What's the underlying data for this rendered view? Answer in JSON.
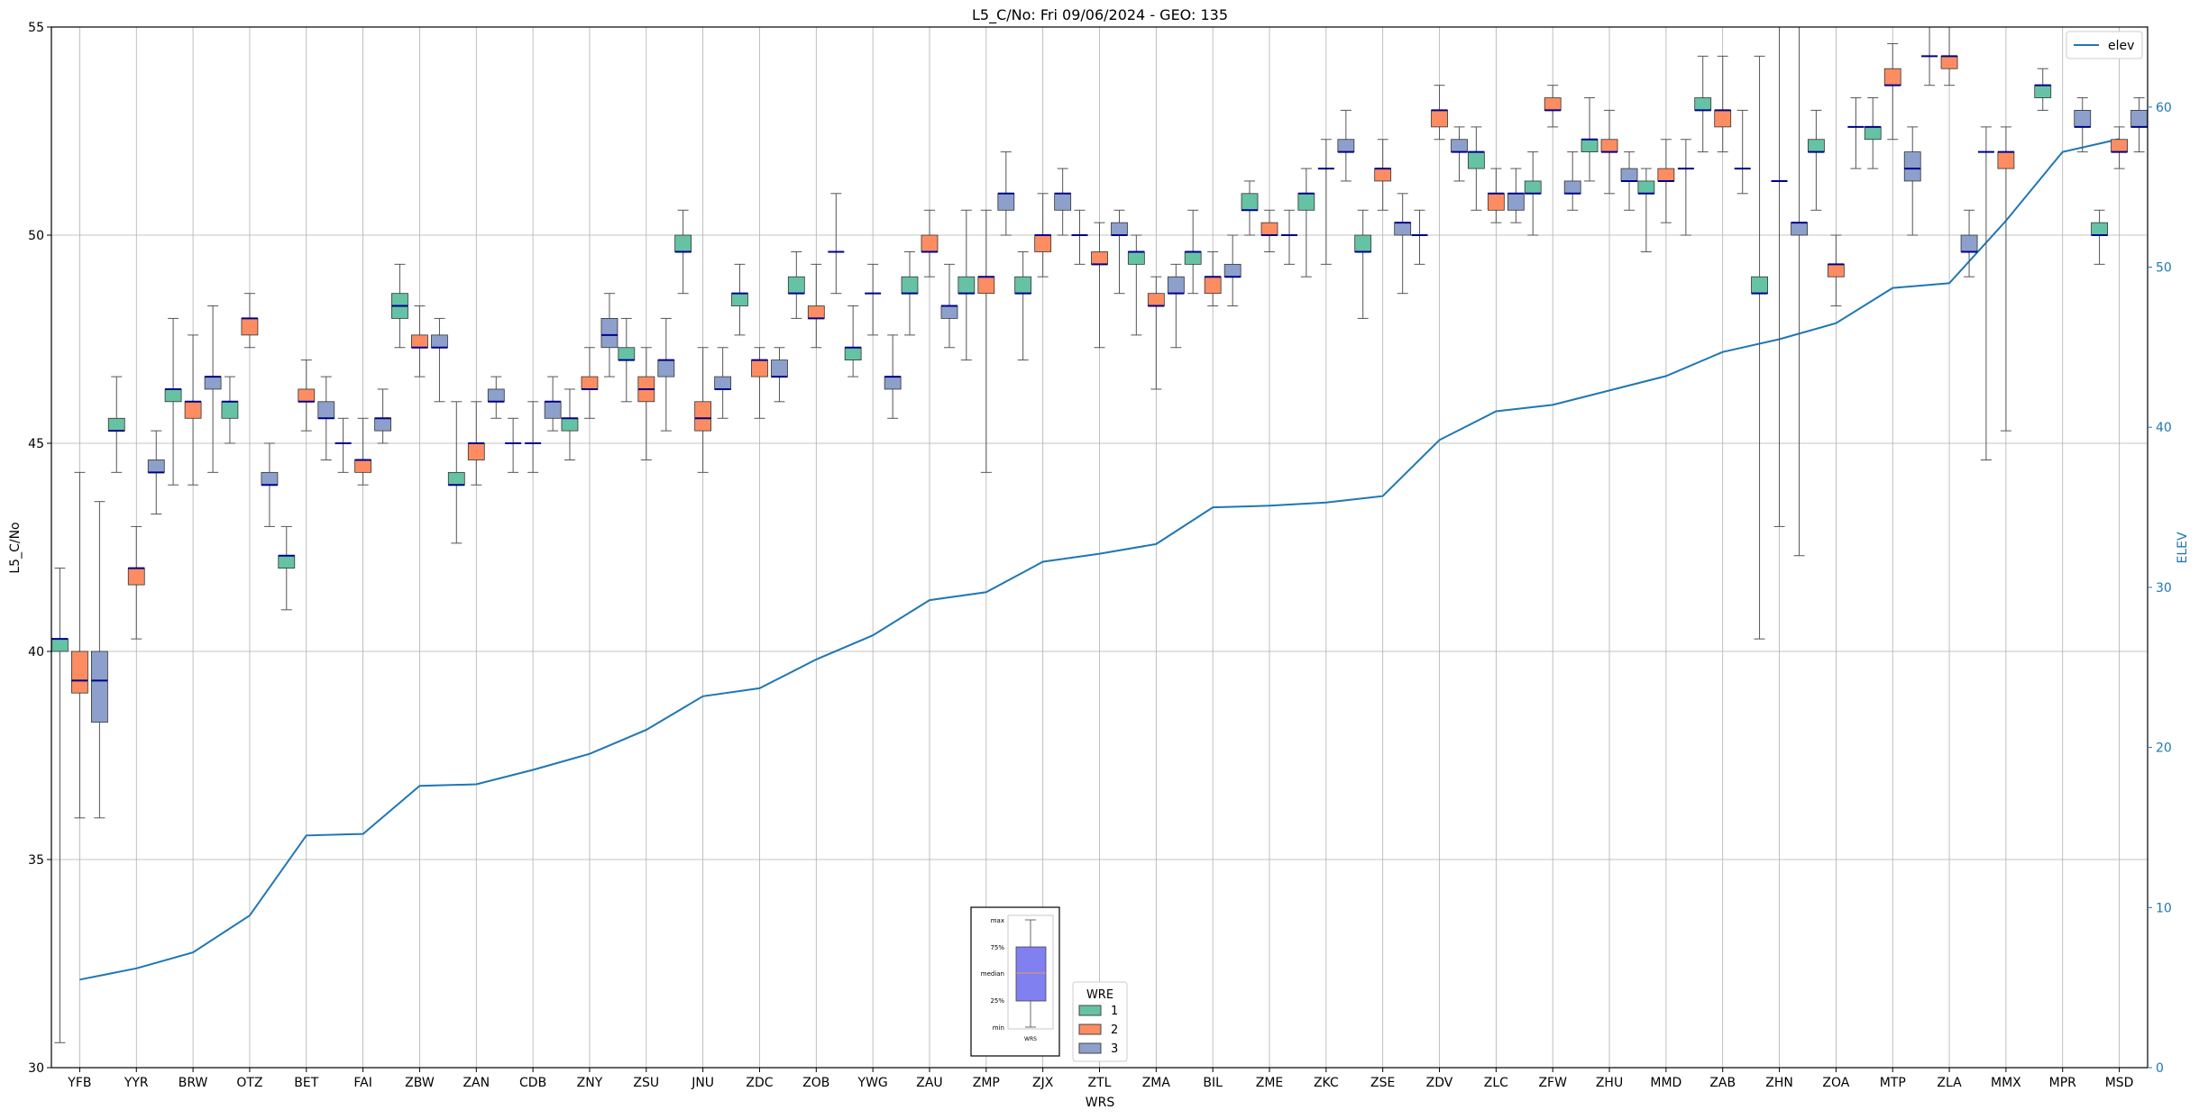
{
  "chart_data": {
    "type": "box",
    "title": "L5_C/No: Fri 09/06/2024 - GEO: 135",
    "xlabel": "WRS",
    "ylabel": "L5_C/No",
    "y2label": "ELEV",
    "ylim": [
      30,
      55
    ],
    "y2lim": [
      0,
      65
    ],
    "yticks": [
      30,
      35,
      40,
      45,
      50,
      55
    ],
    "y2ticks": [
      0,
      10,
      20,
      30,
      40,
      50,
      60
    ],
    "grid": true,
    "categories": [
      "YFB",
      "YYR",
      "BRW",
      "OTZ",
      "BET",
      "FAI",
      "ZBW",
      "ZAN",
      "CDB",
      "ZNY",
      "ZSU",
      "JNU",
      "ZDC",
      "ZOB",
      "YWG",
      "ZAU",
      "ZMP",
      "ZJX",
      "ZTL",
      "ZMA",
      "BIL",
      "ZME",
      "ZKC",
      "ZSE",
      "ZDV",
      "ZLC",
      "ZFW",
      "ZHU",
      "MMD",
      "ZAB",
      "ZHN",
      "ZOA",
      "MTP",
      "ZLA",
      "MMX",
      "MPR",
      "MSD"
    ],
    "box_series_colors": {
      "1": "#66c2a5",
      "2": "#fc8d62",
      "3": "#8da0cb"
    },
    "line_series": {
      "name": "elev",
      "color": "#1f77b4",
      "axis": "right",
      "values": [
        5.5,
        6.2,
        7.2,
        9.5,
        14.5,
        14.6,
        17.6,
        17.7,
        18.6,
        19.6,
        21.1,
        23.2,
        23.7,
        25.5,
        27.0,
        29.2,
        29.7,
        31.6,
        32.1,
        32.7,
        35.0,
        35.1,
        35.3,
        35.7,
        39.2,
        41.0,
        41.4,
        42.3,
        43.2,
        44.7,
        45.5,
        46.5,
        48.7,
        49.0,
        52.9,
        57.2,
        58.0
      ]
    },
    "boxes": [
      {
        "cat": "YFB",
        "wre": "1",
        "min": 30.6,
        "q1": 40.0,
        "median": 40.3,
        "q3": 40.3,
        "max": 42.0
      },
      {
        "cat": "YFB",
        "wre": "2",
        "min": 36.0,
        "q1": 39.0,
        "median": 39.3,
        "q3": 40.0,
        "max": 44.3
      },
      {
        "cat": "YFB",
        "wre": "3",
        "min": 36.0,
        "q1": 38.3,
        "median": 39.3,
        "q3": 40.0,
        "max": 43.6
      },
      {
        "cat": "YYR",
        "wre": "1",
        "min": 44.3,
        "q1": 45.3,
        "median": 45.3,
        "q3": 45.6,
        "max": 46.6
      },
      {
        "cat": "YYR",
        "wre": "2",
        "min": 40.3,
        "q1": 41.6,
        "median": 42.0,
        "q3": 42.0,
        "max": 43.0
      },
      {
        "cat": "YYR",
        "wre": "3",
        "min": 43.3,
        "q1": 44.3,
        "median": 44.3,
        "q3": 44.6,
        "max": 45.3
      },
      {
        "cat": "BRW",
        "wre": "1",
        "min": 44.0,
        "q1": 46.0,
        "median": 46.3,
        "q3": 46.3,
        "max": 48.0
      },
      {
        "cat": "BRW",
        "wre": "2",
        "min": 44.0,
        "q1": 45.6,
        "median": 46.0,
        "q3": 46.0,
        "max": 47.6
      },
      {
        "cat": "BRW",
        "wre": "3",
        "min": 44.3,
        "q1": 46.3,
        "median": 46.6,
        "q3": 46.6,
        "max": 48.3
      },
      {
        "cat": "OTZ",
        "wre": "1",
        "min": 45.0,
        "q1": 45.6,
        "median": 46.0,
        "q3": 46.0,
        "max": 46.6
      },
      {
        "cat": "OTZ",
        "wre": "2",
        "min": 47.3,
        "q1": 47.6,
        "median": 48.0,
        "q3": 48.0,
        "max": 48.6
      },
      {
        "cat": "OTZ",
        "wre": "3",
        "min": 43.0,
        "q1": 44.0,
        "median": 44.0,
        "q3": 44.3,
        "max": 45.0
      },
      {
        "cat": "BET",
        "wre": "1",
        "min": 41.0,
        "q1": 42.0,
        "median": 42.3,
        "q3": 42.3,
        "max": 43.0
      },
      {
        "cat": "BET",
        "wre": "2",
        "min": 45.3,
        "q1": 46.0,
        "median": 46.0,
        "q3": 46.3,
        "max": 47.0
      },
      {
        "cat": "BET",
        "wre": "3",
        "min": 44.6,
        "q1": 45.6,
        "median": 45.6,
        "q3": 46.0,
        "max": 46.6
      },
      {
        "cat": "FAI",
        "wre": "1",
        "min": 44.3,
        "q1": 45.0,
        "median": 45.0,
        "q3": 45.0,
        "max": 45.6
      },
      {
        "cat": "FAI",
        "wre": "2",
        "min": 44.0,
        "q1": 44.3,
        "median": 44.6,
        "q3": 44.6,
        "max": 45.6
      },
      {
        "cat": "FAI",
        "wre": "3",
        "min": 45.0,
        "q1": 45.3,
        "median": 45.6,
        "q3": 45.6,
        "max": 46.3
      },
      {
        "cat": "ZBW",
        "wre": "1",
        "min": 47.3,
        "q1": 48.0,
        "median": 48.3,
        "q3": 48.6,
        "max": 49.3
      },
      {
        "cat": "ZBW",
        "wre": "2",
        "min": 46.6,
        "q1": 47.3,
        "median": 47.3,
        "q3": 47.6,
        "max": 48.3
      },
      {
        "cat": "ZBW",
        "wre": "3",
        "min": 46.0,
        "q1": 47.3,
        "median": 47.3,
        "q3": 47.6,
        "max": 48.0
      },
      {
        "cat": "ZAN",
        "wre": "1",
        "min": 42.6,
        "q1": 44.0,
        "median": 44.0,
        "q3": 44.3,
        "max": 46.0
      },
      {
        "cat": "ZAN",
        "wre": "2",
        "min": 44.0,
        "q1": 44.6,
        "median": 45.0,
        "q3": 45.0,
        "max": 46.0
      },
      {
        "cat": "ZAN",
        "wre": "3",
        "min": 45.6,
        "q1": 46.0,
        "median": 46.0,
        "q3": 46.3,
        "max": 46.6
      },
      {
        "cat": "CDB",
        "wre": "1",
        "min": 44.3,
        "q1": 45.0,
        "median": 45.0,
        "q3": 45.0,
        "max": 45.6
      },
      {
        "cat": "CDB",
        "wre": "2",
        "min": 44.3,
        "q1": 45.0,
        "median": 45.0,
        "q3": 45.0,
        "max": 46.0
      },
      {
        "cat": "CDB",
        "wre": "3",
        "min": 45.3,
        "q1": 45.6,
        "median": 46.0,
        "q3": 46.0,
        "max": 46.6
      },
      {
        "cat": "ZNY",
        "wre": "1",
        "min": 44.6,
        "q1": 45.3,
        "median": 45.6,
        "q3": 45.6,
        "max": 46.3
      },
      {
        "cat": "ZNY",
        "wre": "2",
        "min": 45.6,
        "q1": 46.3,
        "median": 46.3,
        "q3": 46.6,
        "max": 47.3
      },
      {
        "cat": "ZNY",
        "wre": "3",
        "min": 46.6,
        "q1": 47.3,
        "median": 47.6,
        "q3": 48.0,
        "max": 48.6
      },
      {
        "cat": "ZSU",
        "wre": "1",
        "min": 46.0,
        "q1": 47.0,
        "median": 47.0,
        "q3": 47.3,
        "max": 48.0
      },
      {
        "cat": "ZSU",
        "wre": "2",
        "min": 44.6,
        "q1": 46.0,
        "median": 46.3,
        "q3": 46.6,
        "max": 47.3
      },
      {
        "cat": "ZSU",
        "wre": "3",
        "min": 45.3,
        "q1": 46.6,
        "median": 47.0,
        "q3": 47.0,
        "max": 48.0
      },
      {
        "cat": "JNU",
        "wre": "1",
        "min": 48.6,
        "q1": 49.6,
        "median": 49.6,
        "q3": 50.0,
        "max": 50.6
      },
      {
        "cat": "JNU",
        "wre": "2",
        "min": 44.3,
        "q1": 45.3,
        "median": 45.6,
        "q3": 46.0,
        "max": 47.3
      },
      {
        "cat": "JNU",
        "wre": "3",
        "min": 45.6,
        "q1": 46.3,
        "median": 46.3,
        "q3": 46.6,
        "max": 47.3
      },
      {
        "cat": "ZDC",
        "wre": "1",
        "min": 47.6,
        "q1": 48.3,
        "median": 48.6,
        "q3": 48.6,
        "max": 49.3
      },
      {
        "cat": "ZDC",
        "wre": "2",
        "min": 45.6,
        "q1": 46.6,
        "median": 47.0,
        "q3": 47.0,
        "max": 47.3
      },
      {
        "cat": "ZDC",
        "wre": "3",
        "min": 46.0,
        "q1": 46.6,
        "median": 46.6,
        "q3": 47.0,
        "max": 47.3
      },
      {
        "cat": "ZOB",
        "wre": "1",
        "min": 48.0,
        "q1": 48.6,
        "median": 48.6,
        "q3": 49.0,
        "max": 49.6
      },
      {
        "cat": "ZOB",
        "wre": "2",
        "min": 47.3,
        "q1": 48.0,
        "median": 48.0,
        "q3": 48.3,
        "max": 49.3
      },
      {
        "cat": "ZOB",
        "wre": "3",
        "min": 48.6,
        "q1": 49.6,
        "median": 49.6,
        "q3": 49.6,
        "max": 51.0
      },
      {
        "cat": "YWG",
        "wre": "1",
        "min": 46.6,
        "q1": 47.0,
        "median": 47.3,
        "q3": 47.3,
        "max": 48.3
      },
      {
        "cat": "YWG",
        "wre": "2",
        "min": 47.6,
        "q1": 48.6,
        "median": 48.6,
        "q3": 48.6,
        "max": 49.3
      },
      {
        "cat": "YWG",
        "wre": "3",
        "min": 45.6,
        "q1": 46.3,
        "median": 46.6,
        "q3": 46.6,
        "max": 47.6
      },
      {
        "cat": "ZAU",
        "wre": "1",
        "min": 47.6,
        "q1": 48.6,
        "median": 48.6,
        "q3": 49.0,
        "max": 49.6
      },
      {
        "cat": "ZAU",
        "wre": "2",
        "min": 49.0,
        "q1": 49.6,
        "median": 49.6,
        "q3": 50.0,
        "max": 50.6
      },
      {
        "cat": "ZAU",
        "wre": "3",
        "min": 47.3,
        "q1": 48.0,
        "median": 48.3,
        "q3": 48.3,
        "max": 49.3
      },
      {
        "cat": "ZMP",
        "wre": "1",
        "min": 47.0,
        "q1": 48.6,
        "median": 48.6,
        "q3": 49.0,
        "max": 50.6
      },
      {
        "cat": "ZMP",
        "wre": "2",
        "min": 44.3,
        "q1": 48.6,
        "median": 49.0,
        "q3": 49.0,
        "max": 50.6
      },
      {
        "cat": "ZMP",
        "wre": "3",
        "min": 50.0,
        "q1": 50.6,
        "median": 51.0,
        "q3": 51.0,
        "max": 52.0
      },
      {
        "cat": "ZJX",
        "wre": "1",
        "min": 47.0,
        "q1": 48.6,
        "median": 48.6,
        "q3": 49.0,
        "max": 49.6
      },
      {
        "cat": "ZJX",
        "wre": "2",
        "min": 49.0,
        "q1": 49.6,
        "median": 50.0,
        "q3": 50.0,
        "max": 51.0
      },
      {
        "cat": "ZJX",
        "wre": "3",
        "min": 50.0,
        "q1": 50.6,
        "median": 51.0,
        "q3": 51.0,
        "max": 51.6
      },
      {
        "cat": "ZTL",
        "wre": "1",
        "min": 49.3,
        "q1": 50.0,
        "median": 50.0,
        "q3": 50.0,
        "max": 50.6
      },
      {
        "cat": "ZTL",
        "wre": "2",
        "min": 47.3,
        "q1": 49.3,
        "median": 49.3,
        "q3": 49.6,
        "max": 50.3
      },
      {
        "cat": "ZTL",
        "wre": "3",
        "min": 48.6,
        "q1": 50.0,
        "median": 50.0,
        "q3": 50.3,
        "max": 50.6
      },
      {
        "cat": "ZMA",
        "wre": "1",
        "min": 47.6,
        "q1": 49.3,
        "median": 49.6,
        "q3": 49.6,
        "max": 50.0
      },
      {
        "cat": "ZMA",
        "wre": "2",
        "min": 46.3,
        "q1": 48.3,
        "median": 48.3,
        "q3": 48.6,
        "max": 49.0
      },
      {
        "cat": "ZMA",
        "wre": "3",
        "min": 47.3,
        "q1": 48.6,
        "median": 48.6,
        "q3": 49.0,
        "max": 49.3
      },
      {
        "cat": "BIL",
        "wre": "1",
        "min": 48.6,
        "q1": 49.3,
        "median": 49.6,
        "q3": 49.6,
        "max": 50.6
      },
      {
        "cat": "BIL",
        "wre": "2",
        "min": 48.3,
        "q1": 48.6,
        "median": 49.0,
        "q3": 49.0,
        "max": 49.6
      },
      {
        "cat": "BIL",
        "wre": "3",
        "min": 48.3,
        "q1": 49.0,
        "median": 49.0,
        "q3": 49.3,
        "max": 50.0
      },
      {
        "cat": "ZME",
        "wre": "1",
        "min": 50.0,
        "q1": 50.6,
        "median": 50.6,
        "q3": 51.0,
        "max": 51.3
      },
      {
        "cat": "ZME",
        "wre": "2",
        "min": 49.6,
        "q1": 50.0,
        "median": 50.0,
        "q3": 50.3,
        "max": 50.6
      },
      {
        "cat": "ZME",
        "wre": "3",
        "min": 49.3,
        "q1": 50.0,
        "median": 50.0,
        "q3": 50.0,
        "max": 50.6
      },
      {
        "cat": "ZKC",
        "wre": "1",
        "min": 49.0,
        "q1": 50.6,
        "median": 51.0,
        "q3": 51.0,
        "max": 51.6
      },
      {
        "cat": "ZKC",
        "wre": "2",
        "min": 49.3,
        "q1": 51.6,
        "median": 51.6,
        "q3": 51.6,
        "max": 52.3
      },
      {
        "cat": "ZKC",
        "wre": "3",
        "min": 51.3,
        "q1": 52.0,
        "median": 52.0,
        "q3": 52.3,
        "max": 53.0
      },
      {
        "cat": "ZSE",
        "wre": "1",
        "min": 48.0,
        "q1": 49.6,
        "median": 49.6,
        "q3": 50.0,
        "max": 50.6
      },
      {
        "cat": "ZSE",
        "wre": "2",
        "min": 50.6,
        "q1": 51.3,
        "median": 51.6,
        "q3": 51.6,
        "max": 52.3
      },
      {
        "cat": "ZSE",
        "wre": "3",
        "min": 48.6,
        "q1": 50.0,
        "median": 50.3,
        "q3": 50.3,
        "max": 51.0
      },
      {
        "cat": "ZDV",
        "wre": "1",
        "min": 49.3,
        "q1": 50.0,
        "median": 50.0,
        "q3": 50.0,
        "max": 50.6
      },
      {
        "cat": "ZDV",
        "wre": "2",
        "min": 52.3,
        "q1": 52.6,
        "median": 53.0,
        "q3": 53.0,
        "max": 53.6
      },
      {
        "cat": "ZDV",
        "wre": "3",
        "min": 51.3,
        "q1": 52.0,
        "median": 52.0,
        "q3": 52.3,
        "max": 52.6
      },
      {
        "cat": "ZLC",
        "wre": "1",
        "min": 50.6,
        "q1": 51.6,
        "median": 52.0,
        "q3": 52.0,
        "max": 52.6
      },
      {
        "cat": "ZLC",
        "wre": "2",
        "min": 50.3,
        "q1": 50.6,
        "median": 51.0,
        "q3": 51.0,
        "max": 51.6
      },
      {
        "cat": "ZLC",
        "wre": "3",
        "min": 50.3,
        "q1": 50.6,
        "median": 51.0,
        "q3": 51.0,
        "max": 51.6
      },
      {
        "cat": "ZFW",
        "wre": "1",
        "min": 50.0,
        "q1": 51.0,
        "median": 51.0,
        "q3": 51.3,
        "max": 52.0
      },
      {
        "cat": "ZFW",
        "wre": "2",
        "min": 52.6,
        "q1": 53.0,
        "median": 53.0,
        "q3": 53.3,
        "max": 53.6
      },
      {
        "cat": "ZFW",
        "wre": "3",
        "min": 50.6,
        "q1": 51.0,
        "median": 51.0,
        "q3": 51.3,
        "max": 52.0
      },
      {
        "cat": "ZHU",
        "wre": "1",
        "min": 51.3,
        "q1": 52.0,
        "median": 52.3,
        "q3": 52.3,
        "max": 53.3
      },
      {
        "cat": "ZHU",
        "wre": "2",
        "min": 51.0,
        "q1": 52.0,
        "median": 52.0,
        "q3": 52.3,
        "max": 53.0
      },
      {
        "cat": "ZHU",
        "wre": "3",
        "min": 50.6,
        "q1": 51.3,
        "median": 51.3,
        "q3": 51.6,
        "max": 52.0
      },
      {
        "cat": "MMD",
        "wre": "1",
        "min": 49.6,
        "q1": 51.0,
        "median": 51.0,
        "q3": 51.3,
        "max": 51.6
      },
      {
        "cat": "MMD",
        "wre": "2",
        "min": 50.3,
        "q1": 51.3,
        "median": 51.3,
        "q3": 51.6,
        "max": 52.3
      },
      {
        "cat": "MMD",
        "wre": "3",
        "min": 50.0,
        "q1": 51.6,
        "median": 51.6,
        "q3": 51.6,
        "max": 52.3
      },
      {
        "cat": "ZAB",
        "wre": "1",
        "min": 52.0,
        "q1": 53.0,
        "median": 53.0,
        "q3": 53.3,
        "max": 54.3
      },
      {
        "cat": "ZAB",
        "wre": "2",
        "min": 52.0,
        "q1": 52.6,
        "median": 53.0,
        "q3": 53.0,
        "max": 54.3
      },
      {
        "cat": "ZAB",
        "wre": "3",
        "min": 51.0,
        "q1": 51.6,
        "median": 51.6,
        "q3": 51.6,
        "max": 53.0
      },
      {
        "cat": "ZHN",
        "wre": "1",
        "min": 40.3,
        "q1": 48.6,
        "median": 48.6,
        "q3": 49.0,
        "max": 54.3
      },
      {
        "cat": "ZHN",
        "wre": "2",
        "min": 43.0,
        "q1": 51.3,
        "median": 51.3,
        "q3": 51.3,
        "max": 55.0
      },
      {
        "cat": "ZHN",
        "wre": "3",
        "min": 42.3,
        "q1": 50.0,
        "median": 50.3,
        "q3": 50.3,
        "max": 55.0
      },
      {
        "cat": "ZOA",
        "wre": "1",
        "min": 50.6,
        "q1": 52.0,
        "median": 52.0,
        "q3": 52.3,
        "max": 53.0
      },
      {
        "cat": "ZOA",
        "wre": "2",
        "min": 48.3,
        "q1": 49.0,
        "median": 49.3,
        "q3": 49.3,
        "max": 50.0
      },
      {
        "cat": "ZOA",
        "wre": "3",
        "min": 51.6,
        "q1": 52.6,
        "median": 52.6,
        "q3": 52.6,
        "max": 53.3
      },
      {
        "cat": "MTP",
        "wre": "1",
        "min": 51.6,
        "q1": 52.3,
        "median": 52.6,
        "q3": 52.6,
        "max": 53.3
      },
      {
        "cat": "MTP",
        "wre": "2",
        "min": 52.3,
        "q1": 53.6,
        "median": 53.6,
        "q3": 54.0,
        "max": 54.6
      },
      {
        "cat": "MTP",
        "wre": "3",
        "min": 50.0,
        "q1": 51.3,
        "median": 51.6,
        "q3": 52.0,
        "max": 52.6
      },
      {
        "cat": "ZLA",
        "wre": "1",
        "min": 53.6,
        "q1": 54.3,
        "median": 54.3,
        "q3": 54.3,
        "max": 55.0
      },
      {
        "cat": "ZLA",
        "wre": "2",
        "min": 53.6,
        "q1": 54.0,
        "median": 54.3,
        "q3": 54.3,
        "max": 55.0
      },
      {
        "cat": "ZLA",
        "wre": "3",
        "min": 49.0,
        "q1": 49.6,
        "median": 49.6,
        "q3": 50.0,
        "max": 50.6
      },
      {
        "cat": "MMX",
        "wre": "1",
        "min": 44.6,
        "q1": 52.0,
        "median": 52.0,
        "q3": 52.0,
        "max": 52.6
      },
      {
        "cat": "MMX",
        "wre": "2",
        "min": 45.3,
        "q1": 51.6,
        "median": 52.0,
        "q3": 52.0,
        "max": 52.6
      },
      {
        "cat": "MPR",
        "wre": "1",
        "min": 53.0,
        "q1": 53.3,
        "median": 53.6,
        "q3": 53.6,
        "max": 54.0
      },
      {
        "cat": "MPR",
        "wre": "3",
        "min": 52.0,
        "q1": 52.6,
        "median": 52.6,
        "q3": 53.0,
        "max": 53.3
      },
      {
        "cat": "MSD",
        "wre": "1",
        "min": 49.3,
        "q1": 50.0,
        "median": 50.0,
        "q3": 50.3,
        "max": 50.6
      },
      {
        "cat": "MSD",
        "wre": "2",
        "min": 51.6,
        "q1": 52.0,
        "median": 52.0,
        "q3": 52.3,
        "max": 52.6
      },
      {
        "cat": "MSD",
        "wre": "3",
        "min": 52.0,
        "q1": 52.6,
        "median": 52.6,
        "q3": 53.0,
        "max": 53.3
      }
    ],
    "legend_line": {
      "label": "elev",
      "placement": "top-right"
    },
    "legend_boxes": {
      "title": "WRE",
      "entries": [
        "1",
        "2",
        "3"
      ],
      "placement": "bottom-center"
    },
    "inset_key": {
      "labels": [
        "max",
        "75%",
        "median",
        "25%",
        "min"
      ],
      "xlabel": "WRS",
      "color": "#8080f0"
    }
  }
}
